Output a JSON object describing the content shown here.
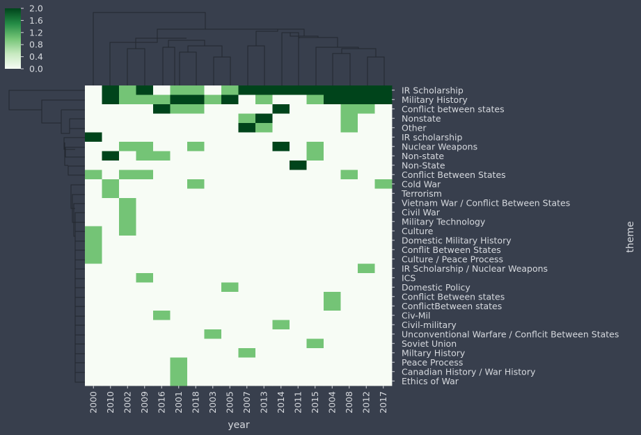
{
  "chart_data": {
    "type": "heatmap",
    "title": "",
    "xlabel": "year",
    "ylabel": "theme",
    "x": [
      "2000",
      "2010",
      "2002",
      "2009",
      "2016",
      "2001",
      "2018",
      "2003",
      "2005",
      "2007",
      "2013",
      "2014",
      "2011",
      "2015",
      "2004",
      "2008",
      "2012",
      "2017"
    ],
    "y": [
      "IR Scholarship",
      "Military History",
      "Conflict between states",
      "Nonstate",
      "Other",
      "IR scholarship",
      "Nuclear Weapons",
      "Non-state",
      "Non-State",
      "Conflict Between States",
      "Cold War",
      "Terrorism",
      "Vietnam War / Conflict Between States",
      "Civil War",
      "Military Technology",
      "Culture",
      "Domestic Military History",
      "Conflit Between States",
      "Culture / Peace Process",
      "IR Scholarship / Nuclear Weapons",
      "ICS",
      "Domestic Policy",
      "Conflict Between states",
      "ConflictBetween states",
      "Civ-Mil",
      "Civil-military",
      "Unconventional Warfare / Conflcit Between States",
      "Soviet Union",
      "Miltary History",
      "Peace Process",
      "Canadian History / War History",
      "Ethics of War"
    ],
    "values": [
      [
        0,
        2,
        1,
        2,
        0,
        1,
        1,
        0,
        1,
        2,
        2,
        2,
        2,
        2,
        2,
        2,
        2,
        2
      ],
      [
        0,
        2,
        1,
        1,
        1,
        2,
        2,
        1,
        2,
        0,
        1,
        0,
        0,
        1,
        2,
        2,
        2,
        2
      ],
      [
        0,
        0,
        0,
        0,
        2,
        1,
        1,
        0,
        0,
        0,
        0,
        2,
        0,
        0,
        0,
        1,
        1,
        0
      ],
      [
        0,
        0,
        0,
        0,
        0,
        0,
        0,
        0,
        0,
        1,
        2,
        0,
        0,
        0,
        0,
        1,
        0,
        0
      ],
      [
        0,
        0,
        0,
        0,
        0,
        0,
        0,
        0,
        0,
        2,
        1,
        0,
        0,
        0,
        0,
        1,
        0,
        0
      ],
      [
        2,
        0,
        0,
        0,
        0,
        0,
        0,
        0,
        0,
        0,
        0,
        0,
        0,
        0,
        0,
        0,
        0,
        0
      ],
      [
        0,
        0,
        1,
        1,
        0,
        0,
        1,
        0,
        0,
        0,
        0,
        2,
        0,
        1,
        0,
        0,
        0,
        0
      ],
      [
        0,
        2,
        0,
        1,
        1,
        0,
        0,
        0,
        0,
        0,
        0,
        0,
        0,
        1,
        0,
        0,
        0,
        0
      ],
      [
        0,
        0,
        0,
        0,
        0,
        0,
        0,
        0,
        0,
        0,
        0,
        0,
        2,
        0,
        0,
        0,
        0,
        0
      ],
      [
        1,
        0,
        1,
        1,
        0,
        0,
        0,
        0,
        0,
        0,
        0,
        0,
        0,
        0,
        0,
        1,
        0,
        0
      ],
      [
        0,
        1,
        0,
        0,
        0,
        0,
        1,
        0,
        0,
        0,
        0,
        0,
        0,
        0,
        0,
        0,
        0,
        1
      ],
      [
        0,
        1,
        0,
        0,
        0,
        0,
        0,
        0,
        0,
        0,
        0,
        0,
        0,
        0,
        0,
        0,
        0,
        0
      ],
      [
        0,
        0,
        1,
        0,
        0,
        0,
        0,
        0,
        0,
        0,
        0,
        0,
        0,
        0,
        0,
        0,
        0,
        0
      ],
      [
        0,
        0,
        1,
        0,
        0,
        0,
        0,
        0,
        0,
        0,
        0,
        0,
        0,
        0,
        0,
        0,
        0,
        0
      ],
      [
        0,
        0,
        1,
        0,
        0,
        0,
        0,
        0,
        0,
        0,
        0,
        0,
        0,
        0,
        0,
        0,
        0,
        0
      ],
      [
        1,
        0,
        1,
        0,
        0,
        0,
        0,
        0,
        0,
        0,
        0,
        0,
        0,
        0,
        0,
        0,
        0,
        0
      ],
      [
        1,
        0,
        0,
        0,
        0,
        0,
        0,
        0,
        0,
        0,
        0,
        0,
        0,
        0,
        0,
        0,
        0,
        0
      ],
      [
        1,
        0,
        0,
        0,
        0,
        0,
        0,
        0,
        0,
        0,
        0,
        0,
        0,
        0,
        0,
        0,
        0,
        0
      ],
      [
        1,
        0,
        0,
        0,
        0,
        0,
        0,
        0,
        0,
        0,
        0,
        0,
        0,
        0,
        0,
        0,
        0,
        0
      ],
      [
        0,
        0,
        0,
        0,
        0,
        0,
        0,
        0,
        0,
        0,
        0,
        0,
        0,
        0,
        0,
        0,
        1,
        0
      ],
      [
        0,
        0,
        0,
        1,
        0,
        0,
        0,
        0,
        0,
        0,
        0,
        0,
        0,
        0,
        0,
        0,
        0,
        0
      ],
      [
        0,
        0,
        0,
        0,
        0,
        0,
        0,
        0,
        1,
        0,
        0,
        0,
        0,
        0,
        0,
        0,
        0,
        0
      ],
      [
        0,
        0,
        0,
        0,
        0,
        0,
        0,
        0,
        0,
        0,
        0,
        0,
        0,
        0,
        1,
        0,
        0,
        0
      ],
      [
        0,
        0,
        0,
        0,
        0,
        0,
        0,
        0,
        0,
        0,
        0,
        0,
        0,
        0,
        1,
        0,
        0,
        0
      ],
      [
        0,
        0,
        0,
        0,
        1,
        0,
        0,
        0,
        0,
        0,
        0,
        0,
        0,
        0,
        0,
        0,
        0,
        0
      ],
      [
        0,
        0,
        0,
        0,
        0,
        0,
        0,
        0,
        0,
        0,
        0,
        1,
        0,
        0,
        0,
        0,
        0,
        0
      ],
      [
        0,
        0,
        0,
        0,
        0,
        0,
        0,
        1,
        0,
        0,
        0,
        0,
        0,
        0,
        0,
        0,
        0,
        0
      ],
      [
        0,
        0,
        0,
        0,
        0,
        0,
        0,
        0,
        0,
        0,
        0,
        0,
        0,
        1,
        0,
        0,
        0,
        0
      ],
      [
        0,
        0,
        0,
        0,
        0,
        0,
        0,
        0,
        0,
        1,
        0,
        0,
        0,
        0,
        0,
        0,
        0,
        0
      ],
      [
        0,
        0,
        0,
        0,
        0,
        1,
        0,
        0,
        0,
        0,
        0,
        0,
        0,
        0,
        0,
        0,
        0,
        0
      ],
      [
        0,
        0,
        0,
        0,
        0,
        1,
        0,
        0,
        0,
        0,
        0,
        0,
        0,
        0,
        0,
        0,
        0,
        0
      ],
      [
        0,
        0,
        0,
        0,
        0,
        1,
        0,
        0,
        0,
        0,
        0,
        0,
        0,
        0,
        0,
        0,
        0,
        0
      ]
    ],
    "colorbar": {
      "min": 0,
      "max": 2,
      "ticks": [
        "0.0",
        "0.4",
        "0.8",
        "1.2",
        "1.6",
        "2.0"
      ]
    },
    "colormap": [
      "#f7fcf5",
      "#74c476",
      "#00441b"
    ],
    "dendrograms": {
      "rows": true,
      "columns": true
    },
    "grid": false
  },
  "colors": {
    "background": "#383f4d",
    "text": "#d6d9de",
    "dendrogram": "#22272f"
  }
}
